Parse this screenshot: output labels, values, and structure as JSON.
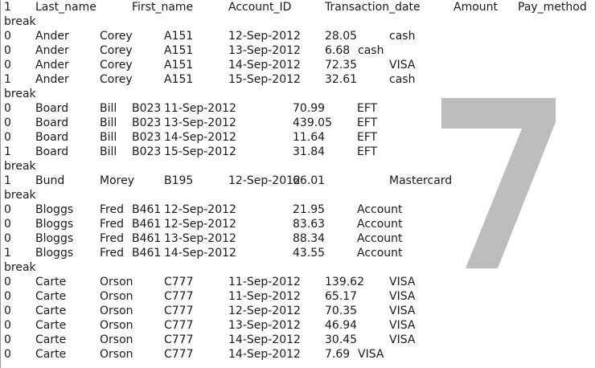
{
  "document": {
    "watermark_number": "7",
    "lines": [
      {
        "kind": "header",
        "cells": [
          "1",
          "Last_name",
          "First_name",
          "Account_ID",
          "Transaction_date",
          "Amount",
          "Pay_method"
        ]
      },
      {
        "kind": "break",
        "text": "break"
      },
      {
        "kind": "row",
        "cells": [
          "0",
          "Ander",
          "Corey",
          "A151",
          "12-Sep-2012",
          "28.05",
          "cash"
        ]
      },
      {
        "kind": "row",
        "cells": [
          "0",
          "Ander",
          "Corey",
          "A151",
          "13-Sep-2012",
          "6.68",
          "cash"
        ]
      },
      {
        "kind": "row",
        "cells": [
          "0",
          "Ander",
          "Corey",
          "A151",
          "14-Sep-2012",
          "72.35",
          "VISA"
        ]
      },
      {
        "kind": "row",
        "cells": [
          "1",
          "Ander",
          "Corey",
          "A151",
          "15-Sep-2012",
          "32.61",
          "cash"
        ]
      },
      {
        "kind": "break",
        "text": "break"
      },
      {
        "kind": "row",
        "cells": [
          "0",
          "Board",
          "Bill",
          "B023",
          "11-Sep-2012",
          "70.99",
          "EFT"
        ]
      },
      {
        "kind": "row",
        "cells": [
          "0",
          "Board",
          "Bill",
          "B023",
          "13-Sep-2012",
          "439.05",
          "EFT"
        ]
      },
      {
        "kind": "row",
        "cells": [
          "0",
          "Board",
          "Bill",
          "B023",
          "14-Sep-2012",
          "11.64",
          "EFT"
        ]
      },
      {
        "kind": "row",
        "cells": [
          "1",
          "Board",
          "Bill",
          "B023",
          "15-Sep-2012",
          "31.84",
          "EFT"
        ]
      },
      {
        "kind": "break",
        "text": "break"
      },
      {
        "kind": "row",
        "cells": [
          "1",
          "Bund",
          "Morey",
          "B195",
          "12-Sep-2012",
          "66.01",
          "Mastercard"
        ]
      },
      {
        "kind": "break",
        "text": "break"
      },
      {
        "kind": "row",
        "cells": [
          "0",
          "Bloggs",
          "Fred",
          "B461",
          "12-Sep-2012",
          "21.95",
          "Account"
        ]
      },
      {
        "kind": "row",
        "cells": [
          "0",
          "Bloggs",
          "Fred",
          "B461",
          "12-Sep-2012",
          "83.63",
          "Account"
        ]
      },
      {
        "kind": "row",
        "cells": [
          "0",
          "Bloggs",
          "Fred",
          "B461",
          "13-Sep-2012",
          "88.34",
          "Account"
        ]
      },
      {
        "kind": "row",
        "cells": [
          "1",
          "Bloggs",
          "Fred",
          "B461",
          "14-Sep-2012",
          "43.55",
          "Account"
        ]
      },
      {
        "kind": "break",
        "text": "break"
      },
      {
        "kind": "row",
        "cells": [
          "0",
          "Carte",
          "Orson",
          "C777",
          "11-Sep-2012",
          "139.62",
          "VISA"
        ]
      },
      {
        "kind": "row",
        "cells": [
          "0",
          "Carte",
          "Orson",
          "C777",
          "11-Sep-2012",
          "65.17",
          "VISA"
        ]
      },
      {
        "kind": "row",
        "cells": [
          "0",
          "Carte",
          "Orson",
          "C777",
          "12-Sep-2012",
          "70.35",
          "VISA"
        ]
      },
      {
        "kind": "row",
        "cells": [
          "0",
          "Carte",
          "Orson",
          "C777",
          "13-Sep-2012",
          "46.94",
          "VISA"
        ]
      },
      {
        "kind": "row",
        "cells": [
          "0",
          "Carte",
          "Orson",
          "C777",
          "14-Sep-2012",
          "30.45",
          "VISA"
        ]
      },
      {
        "kind": "row",
        "cells": [
          "0",
          "Carte",
          "Orson",
          "C777",
          "14-Sep-2012",
          "7.69",
          "VISA"
        ]
      }
    ]
  },
  "colors": {
    "text": "#1a1a1a",
    "watermark": "#bdbdbd",
    "background": "#ffffff"
  }
}
